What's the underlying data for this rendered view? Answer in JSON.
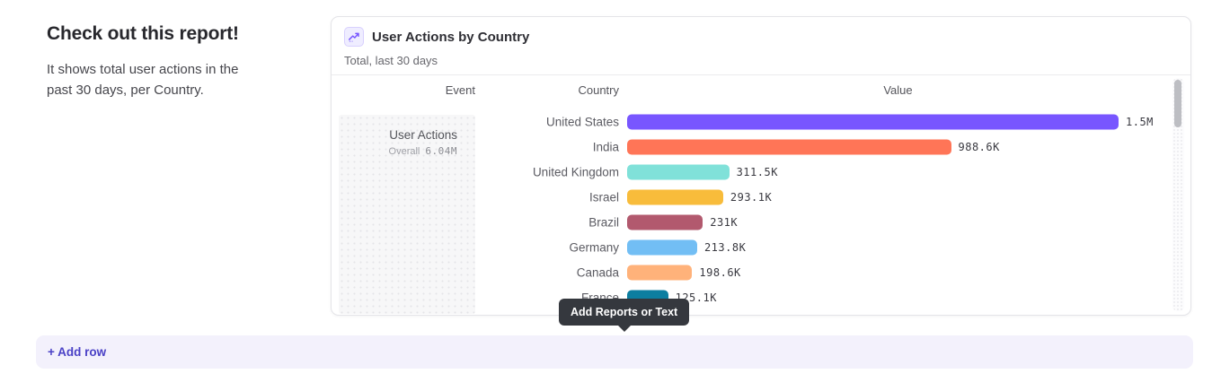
{
  "page": {
    "heading": "Check out this report!",
    "description": "It shows total user actions in the past 30 days, per Country."
  },
  "report_card": {
    "icon": "line-chart-icon",
    "icon_color": "#7856FF",
    "title": "User Actions by Country",
    "subtitle": "Total, last 30 days",
    "columns": [
      "Event",
      "Country",
      "Value"
    ],
    "event": {
      "name": "User Actions",
      "overall_label": "Overall",
      "overall_value": "6.04M"
    },
    "rows": [
      {
        "country": "United States",
        "value_label": "1.5M",
        "value": 1500000,
        "color": "#7856FF"
      },
      {
        "country": "India",
        "value_label": "988.6K",
        "value": 988600,
        "color": "#FF7557"
      },
      {
        "country": "United Kingdom",
        "value_label": "311.5K",
        "value": 311500,
        "color": "#80E1D9"
      },
      {
        "country": "Israel",
        "value_label": "293.1K",
        "value": 293100,
        "color": "#F8BC3B"
      },
      {
        "country": "Brazil",
        "value_label": "231K",
        "value": 231000,
        "color": "#B2596E"
      },
      {
        "country": "Germany",
        "value_label": "213.8K",
        "value": 213800,
        "color": "#72BEF4"
      },
      {
        "country": "Canada",
        "value_label": "198.6K",
        "value": 198600,
        "color": "#FFB27A"
      },
      {
        "country": "France",
        "value_label": "125.1K",
        "value": 125100,
        "color": "#0D7EA0"
      }
    ]
  },
  "tooltip": {
    "text": "Add Reports or Text",
    "background": "#35383e"
  },
  "add_row": {
    "label": "+ Add row",
    "text_color": "#4a41c6",
    "background": "#f3f1fc"
  },
  "chart_data": {
    "type": "bar",
    "orientation": "horizontal",
    "title": "User Actions by Country",
    "subtitle": "Total, last 30 days",
    "event": "User Actions",
    "overall_total": "6.04M",
    "categories": [
      "United States",
      "India",
      "United Kingdom",
      "Israel",
      "Brazil",
      "Germany",
      "Canada",
      "France"
    ],
    "values": [
      1500000,
      988600,
      311500,
      293100,
      231000,
      213800,
      198600,
      125100
    ],
    "value_labels": [
      "1.5M",
      "988.6K",
      "311.5K",
      "293.1K",
      "231K",
      "213.8K",
      "198.6K",
      "125.1K"
    ],
    "colors": [
      "#7856FF",
      "#FF7557",
      "#80E1D9",
      "#F8BC3B",
      "#B2596E",
      "#72BEF4",
      "#FFB27A",
      "#0D7EA0"
    ],
    "xlim": [
      0,
      1500000
    ],
    "grid": false,
    "legend": false
  }
}
